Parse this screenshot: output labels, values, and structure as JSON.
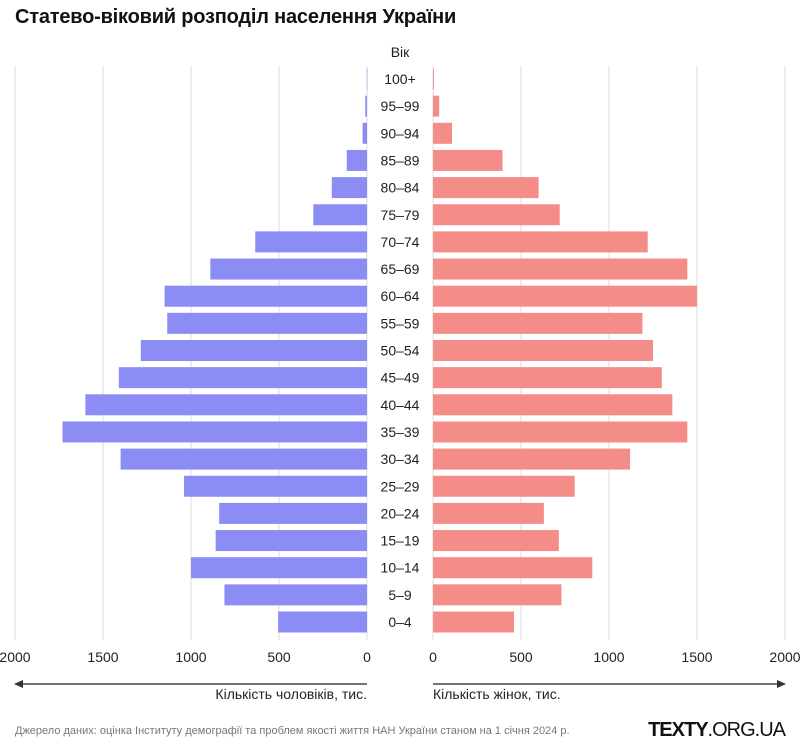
{
  "chart_data": {
    "type": "bar",
    "subtype": "population-pyramid",
    "title": "Статево-віковий розподіл населення України",
    "y_axis_title": "Вік",
    "categories": [
      "100+",
      "95–99",
      "90–94",
      "85–89",
      "80–84",
      "75–79",
      "70–74",
      "65–69",
      "60–64",
      "55–59",
      "50–54",
      "45–49",
      "40–44",
      "35–39",
      "30–34",
      "25–29",
      "20–24",
      "15–19",
      "10–14",
      "5–9",
      "0–4"
    ],
    "series": [
      {
        "name": "Кількість чоловіків, тис.",
        "side": "left",
        "color": "#8c8cf5",
        "values": [
          1,
          10,
          25,
          115,
          200,
          305,
          635,
          890,
          1150,
          1135,
          1285,
          1410,
          1600,
          1730,
          1400,
          1040,
          840,
          860,
          1000,
          810,
          505
        ]
      },
      {
        "name": "Кількість жінок, тис.",
        "side": "right",
        "color": "#f48c88",
        "values": [
          5,
          35,
          108,
          395,
          600,
          720,
          1220,
          1445,
          1500,
          1190,
          1250,
          1300,
          1360,
          1445,
          1120,
          805,
          630,
          715,
          905,
          730,
          460
        ]
      }
    ],
    "x_ticks": [
      0,
      500,
      1000,
      1500,
      2000
    ],
    "x_tick_labels": [
      "0",
      "500",
      "1000",
      "1500",
      "2000"
    ],
    "xlim": [
      0,
      2000
    ],
    "xlabel_left": "Кількість чоловіків, тис.",
    "xlabel_right": "Кількість жінок, тис.",
    "grid": true,
    "legend": "none"
  },
  "footer": {
    "source": "Джерело даних: оцінка Інституту демографії та проблем якості життя НАН України станом на 1 січня 2024 р.",
    "brand_bold": "TEXTY",
    "brand_rest": ".ORG.UA"
  }
}
